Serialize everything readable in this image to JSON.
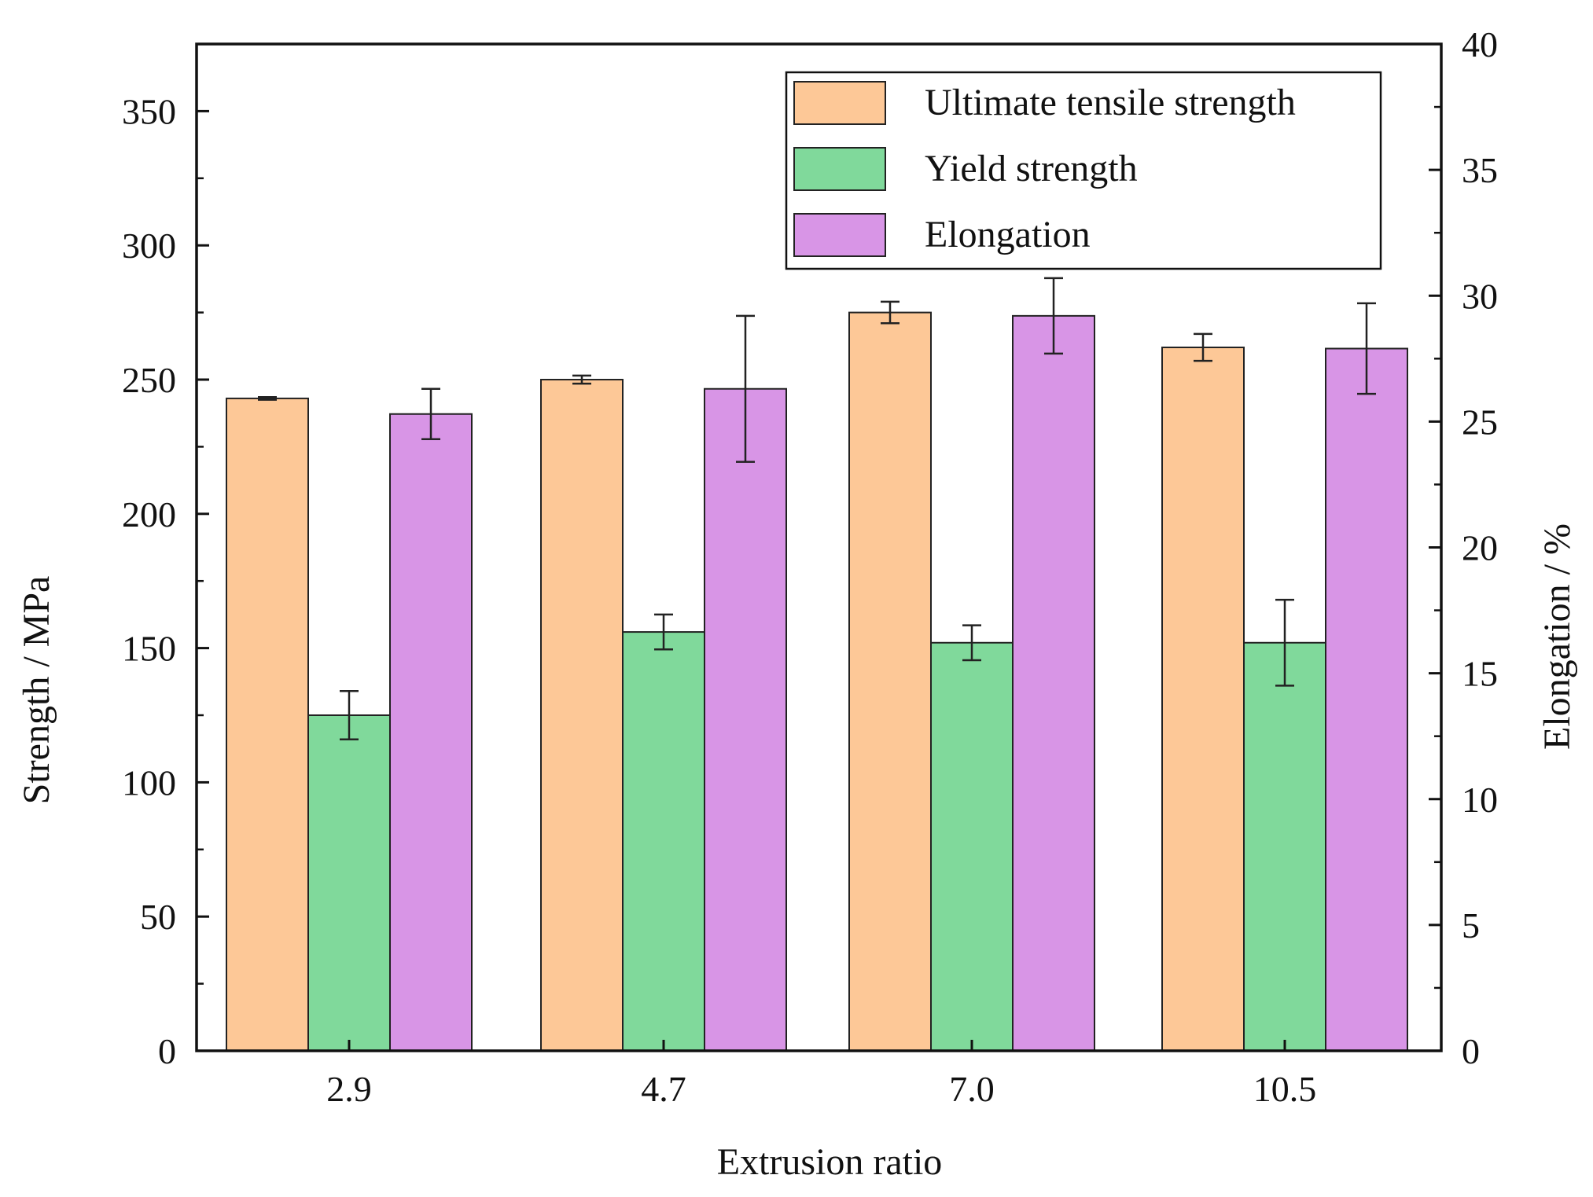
{
  "chart_data": {
    "type": "bar",
    "title": "",
    "xlabel": "Extrusion ratio",
    "ylabel": "Strength / MPa",
    "y2label": "Elongation / %",
    "categories": [
      "2.9",
      "4.7",
      "7.0",
      "10.5"
    ],
    "ylim": [
      0,
      375
    ],
    "y2lim": [
      0,
      40
    ],
    "y_ticks": [
      0,
      50,
      100,
      150,
      200,
      250,
      300,
      350
    ],
    "y_tick_labels": [
      "0",
      "50",
      "100",
      "150",
      "200",
      "250",
      "300",
      "350"
    ],
    "y2_ticks": [
      0,
      5,
      10,
      15,
      20,
      25,
      30,
      35,
      40
    ],
    "y2_tick_labels": [
      "0",
      "5",
      "10",
      "15",
      "20",
      "25",
      "30",
      "35",
      "40"
    ],
    "legend_position": "top-right",
    "grid": false,
    "series": [
      {
        "name": "Ultimate tensile strength",
        "axis": "left",
        "color": "#fdc897",
        "values": [
          243,
          250,
          275,
          262
        ],
        "errors": [
          0.5,
          1.5,
          4,
          5
        ]
      },
      {
        "name": "Yield strength",
        "axis": "left",
        "color": "#80d99b",
        "values": [
          125,
          156,
          152,
          152
        ],
        "errors": [
          9,
          6.5,
          6.5,
          16
        ]
      },
      {
        "name": "Elongation",
        "axis": "right",
        "color": "#d895e6",
        "values": [
          25.3,
          26.3,
          29.2,
          27.9
        ],
        "errors": [
          1.0,
          2.9,
          1.5,
          1.8
        ]
      }
    ]
  }
}
